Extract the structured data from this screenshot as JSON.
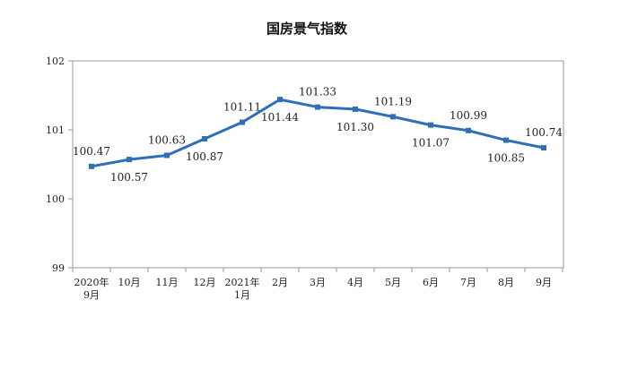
{
  "chart_data": {
    "type": "line",
    "title": "国房景气指数",
    "xlabel": "",
    "ylabel": "",
    "ylim": [
      99,
      102
    ],
    "yticks": [
      "99",
      "100",
      "101",
      "102"
    ],
    "categories": [
      [
        "2020年",
        "9月"
      ],
      [
        "10月"
      ],
      [
        "11月"
      ],
      [
        "12月"
      ],
      [
        "2021年",
        "1月"
      ],
      [
        "2月"
      ],
      [
        "3月"
      ],
      [
        "4月"
      ],
      [
        "5月"
      ],
      [
        "6月"
      ],
      [
        "7月"
      ],
      [
        "8月"
      ],
      [
        "9月"
      ]
    ],
    "values": [
      100.47,
      100.57,
      100.63,
      100.87,
      101.11,
      101.44,
      101.33,
      101.3,
      101.19,
      101.07,
      100.99,
      100.85,
      100.74
    ],
    "value_labels": [
      "100.47",
      "100.57",
      "100.63",
      "100.87",
      "101.11",
      "101.44",
      "101.33",
      "101.30",
      "101.19",
      "101.07",
      "100.99",
      "100.85",
      "100.74"
    ],
    "label_side": [
      "above",
      "below",
      "above",
      "below",
      "above",
      "below",
      "above",
      "below",
      "above",
      "below",
      "above",
      "below",
      "above"
    ],
    "line_color": "#2e6fb7",
    "grid": false,
    "legend": "none"
  }
}
